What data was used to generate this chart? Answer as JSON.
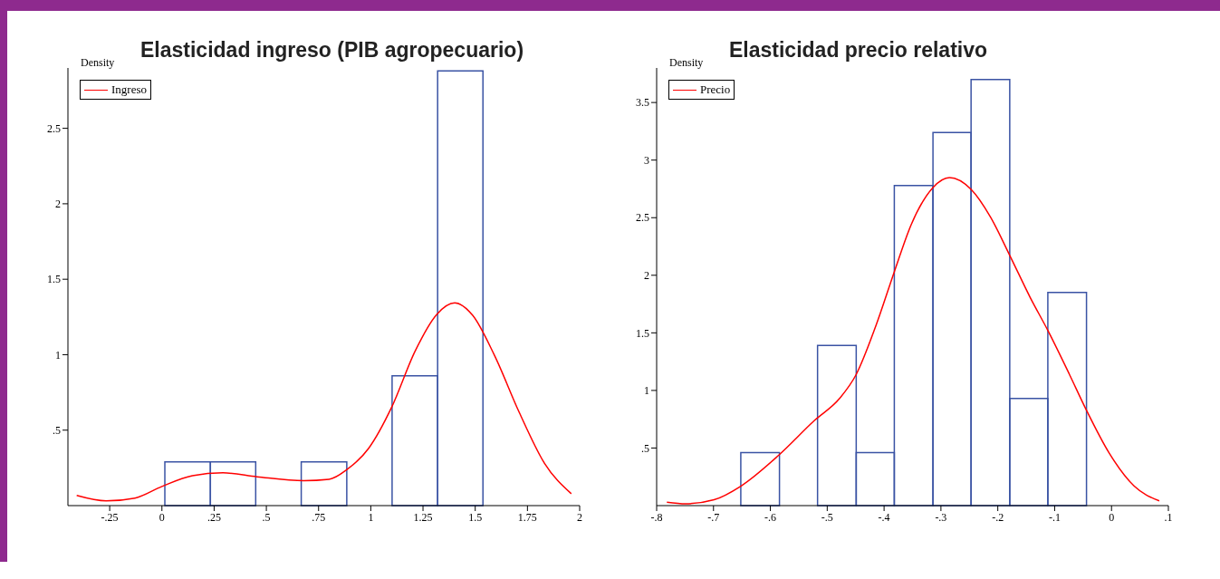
{
  "chart_data": [
    {
      "type": "histogram",
      "title": "Elasticidad ingreso (PIB agropecuario)",
      "ylabel": "Density",
      "legend": "top left",
      "grid": false,
      "color": "#3a53a4",
      "bins": [
        0.014,
        0.232,
        0.449,
        0.667,
        0.885,
        1.102,
        1.32,
        1.537
      ],
      "values": [
        0.29,
        0.29,
        0,
        0.29,
        0,
        0.86,
        2.88
      ],
      "series": [
        {
          "type": "line",
          "name": "Ingreso",
          "color": "#ff0000",
          "x": [
            -0.408,
            -0.267,
            -0.129,
            0,
            0.146,
            0.292,
            0.456,
            0.679,
            0.8,
            0.886,
            0.989,
            1.1,
            1.212,
            1.316,
            1.402,
            1.487,
            1.591,
            1.711,
            1.831,
            1.96
          ],
          "values": [
            0.067,
            0.031,
            0.05,
            0.127,
            0.198,
            0.217,
            0.191,
            0.165,
            0.174,
            0.239,
            0.378,
            0.652,
            1.023,
            1.267,
            1.343,
            1.262,
            0.999,
            0.617,
            0.282,
            0.079
          ]
        }
      ],
      "xlim": [
        -0.45,
        2
      ],
      "ylim": [
        0,
        2.9
      ],
      "xticks": [
        {
          "value": -0.25,
          "label": "-.25"
        },
        0,
        {
          "value": 0.25,
          "label": ".25"
        },
        {
          "value": 0.5,
          "label": ".5"
        },
        {
          "value": 0.75,
          "label": ".75"
        },
        1,
        1.25,
        1.5,
        1.75,
        2
      ],
      "yticks": [
        {
          "value": 0.5,
          "label": ".5"
        },
        1,
        1.5,
        2,
        2.5
      ]
    },
    {
      "type": "histogram",
      "title": "Elasticidad precio relativo",
      "ylabel": "Density",
      "legend": "top left",
      "grid": false,
      "color": "#3a53a4",
      "bins": [
        -0.652,
        -0.584,
        -0.517,
        -0.449,
        -0.382,
        -0.314,
        -0.247,
        -0.179,
        -0.112,
        -0.044
      ],
      "values": [
        0.46,
        0,
        1.39,
        0.46,
        2.78,
        3.24,
        3.7,
        0.93,
        1.85
      ],
      "series": [
        {
          "type": "line",
          "name": "Precio",
          "color": "#ff0000",
          "x": [
            -0.782,
            -0.749,
            -0.699,
            -0.652,
            -0.585,
            -0.522,
            -0.478,
            -0.449,
            -0.415,
            -0.382,
            -0.352,
            -0.314,
            -0.285,
            -0.247,
            -0.213,
            -0.179,
            -0.143,
            -0.112,
            -0.074,
            -0.045,
            -0.004,
            0.04,
            0.084
          ],
          "values": [
            0.03,
            0.016,
            0.051,
            0.169,
            0.439,
            0.741,
            0.932,
            1.139,
            1.553,
            2.03,
            2.443,
            2.762,
            2.848,
            2.746,
            2.507,
            2.173,
            1.807,
            1.521,
            1.139,
            0.837,
            0.455,
            0.169,
            0.041
          ]
        }
      ],
      "xlim": [
        -0.8,
        0.1
      ],
      "ylim": [
        0,
        3.8
      ],
      "xticks": [
        {
          "value": -0.8,
          "label": "-.8"
        },
        {
          "value": -0.7,
          "label": "-.7"
        },
        {
          "value": -0.6,
          "label": "-.6"
        },
        {
          "value": -0.5,
          "label": "-.5"
        },
        {
          "value": -0.4,
          "label": "-.4"
        },
        {
          "value": -0.3,
          "label": "-.3"
        },
        {
          "value": -0.2,
          "label": "-.2"
        },
        {
          "value": -0.1,
          "label": "-.1"
        },
        0,
        {
          "value": 0.1,
          "label": ".1"
        }
      ],
      "yticks": [
        {
          "value": 0.5,
          "label": ".5"
        },
        1,
        1.5,
        2,
        2.5,
        3,
        3.5
      ]
    }
  ]
}
